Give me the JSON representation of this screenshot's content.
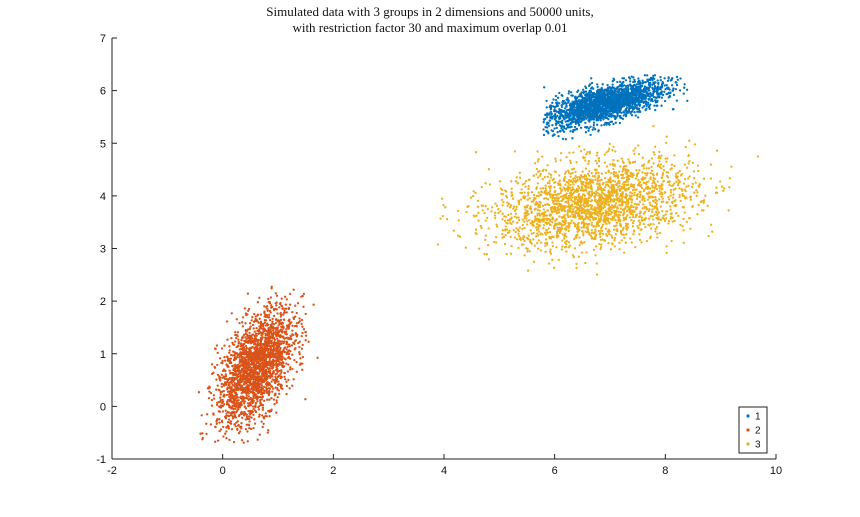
{
  "chart_data": {
    "type": "scatter",
    "title": "Simulated data with 3 groups in 2 dimensions and 50000 units,",
    "subtitle": "with restriction factor 30 and maximum overlap 0.01",
    "xlabel": "",
    "ylabel": "",
    "xlim": [
      -2,
      10
    ],
    "ylim": [
      -1,
      7
    ],
    "xticks": [
      -2,
      0,
      2,
      4,
      6,
      8,
      10
    ],
    "yticks": [
      -1,
      0,
      1,
      2,
      3,
      4,
      5,
      6,
      7
    ],
    "grid": false,
    "legend_position": "bottom-right",
    "series": [
      {
        "name": "1",
        "color": "#0072bd",
        "center": [
          6.9,
          5.75
        ],
        "std": [
          0.55,
          0.22
        ],
        "correlation": 0.65,
        "x_range": [
          5.8,
          8.4
        ],
        "y_range": [
          5.05,
          6.3
        ]
      },
      {
        "name": "2",
        "color": "#d95319",
        "center": [
          0.6,
          0.75
        ],
        "std": [
          0.35,
          0.55
        ],
        "correlation": 0.55,
        "x_range": [
          -0.55,
          1.85
        ],
        "y_range": [
          -0.7,
          2.4
        ]
      },
      {
        "name": "3",
        "color": "#edb120",
        "center": [
          6.7,
          3.85
        ],
        "std": [
          0.9,
          0.42
        ],
        "correlation": 0.3,
        "x_range": [
          3.8,
          9.8
        ],
        "y_range": [
          2.1,
          5.4
        ]
      }
    ]
  }
}
